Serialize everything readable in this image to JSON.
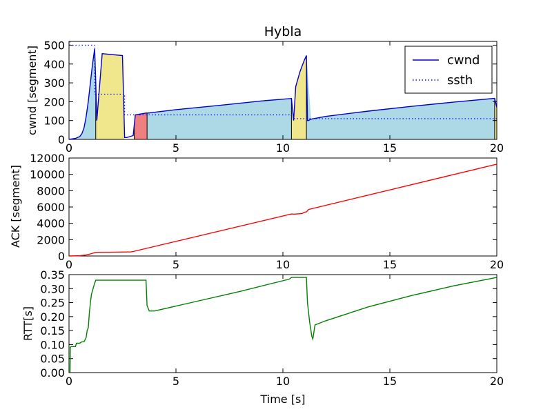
{
  "title": "Hybla",
  "colors": {
    "cwnd": "#0000cc",
    "ssth": "#0000ff",
    "ack": "#ff0000",
    "rtt": "#008000",
    "fill_congestion_avoidance": "#add8e6",
    "fill_slow_start": "#f0e68c",
    "fill_fast_recovery": "#f08080"
  },
  "chart_data": [
    {
      "type": "line",
      "ylabel": "cwnd [segment]",
      "xlim": [
        0,
        20
      ],
      "ylim": [
        0,
        520
      ],
      "xticks": [
        0,
        5,
        10,
        15,
        20
      ],
      "yticks": [
        0,
        100,
        200,
        300,
        400,
        500
      ],
      "legend": {
        "placement": "top-right",
        "entries": [
          "cwnd",
          "ssth"
        ]
      },
      "series": [
        {
          "name": "cwnd",
          "style": "solid",
          "x": [
            0,
            0.3,
            0.5,
            0.6,
            0.7,
            0.8,
            0.9,
            1.0,
            1.1,
            1.2,
            1.25,
            1.3,
            1.55,
            2.5,
            2.6,
            2.7,
            3.0,
            3.1,
            3.6,
            3.65,
            3.7,
            5,
            7,
            9,
            10.4,
            10.5,
            10.6,
            10.7,
            10.8,
            10.9,
            11.0,
            11.1,
            11.15,
            11.2,
            11.3,
            12,
            14,
            16,
            18,
            19.9,
            20
          ],
          "y": [
            0,
            5,
            15,
            30,
            60,
            120,
            200,
            300,
            400,
            480,
            300,
            100,
            455,
            445,
            10,
            10,
            20,
            130,
            140,
            140,
            140,
            158,
            180,
            204,
            217,
            100,
            280,
            320,
            360,
            390,
            420,
            445,
            100,
            100,
            107,
            122,
            150,
            175,
            198,
            218,
            170
          ]
        },
        {
          "name": "ssth",
          "style": "dotted",
          "x": [
            0.05,
            0.05,
            1.2,
            1.2,
            2.6,
            2.6,
            10.4,
            10.4,
            20
          ],
          "y": [
            520,
            500,
            500,
            240,
            240,
            130,
            130,
            110,
            110
          ]
        }
      ],
      "phases": [
        {
          "state": "congestion_avoidance",
          "x_from": 0,
          "x_to": 1.25
        },
        {
          "state": "slow_start",
          "x_from": 1.25,
          "x_to": 2.6
        },
        {
          "state": "fast_recovery",
          "x_from": 3.05,
          "x_to": 3.65
        },
        {
          "state": "congestion_avoidance",
          "x_from": 3.65,
          "x_to": 10.4
        },
        {
          "state": "slow_start",
          "x_from": 10.4,
          "x_to": 11.1
        },
        {
          "state": "congestion_avoidance",
          "x_from": 11.1,
          "x_to": 19.9
        },
        {
          "state": "slow_start",
          "x_from": 19.9,
          "x_to": 20
        }
      ]
    },
    {
      "type": "line",
      "ylabel": "ACK [segment]",
      "xlim": [
        0,
        20
      ],
      "ylim": [
        0,
        12000
      ],
      "xticks": [
        0,
        5,
        10,
        15,
        20
      ],
      "yticks": [
        0,
        2000,
        4000,
        6000,
        8000,
        10000,
        12000
      ],
      "series": [
        {
          "name": "ack",
          "x": [
            0,
            0.5,
            0.8,
            1.0,
            1.25,
            2.0,
            2.9,
            3.0,
            10.4,
            10.5,
            10.9,
            11.0,
            11.1,
            11.2,
            20
          ],
          "y": [
            0,
            30,
            120,
            250,
            450,
            460,
            500,
            550,
            5150,
            5120,
            5200,
            5350,
            5400,
            5700,
            11250
          ]
        }
      ]
    },
    {
      "type": "line",
      "ylabel": "RTT[s]",
      "xlabel": "Time [s]",
      "xlim": [
        0,
        20
      ],
      "ylim": [
        0,
        0.35
      ],
      "xticks": [
        0,
        5,
        10,
        15,
        20
      ],
      "yticks": [
        0.0,
        0.05,
        0.1,
        0.15,
        0.2,
        0.25,
        0.3,
        0.35
      ],
      "series": [
        {
          "name": "rtt",
          "x": [
            0.05,
            0.06,
            0.1,
            0.3,
            0.35,
            0.5,
            0.6,
            0.7,
            0.8,
            0.85,
            0.9,
            0.95,
            1.0,
            1.05,
            1.2,
            1.25,
            3.6,
            3.65,
            3.75,
            4,
            6,
            8,
            10.3,
            10.4,
            11.1,
            11.15,
            11.25,
            11.35,
            11.4,
            11.5,
            12,
            14,
            16,
            18,
            20
          ],
          "y": [
            0.0,
            0.09,
            0.093,
            0.093,
            0.105,
            0.105,
            0.11,
            0.11,
            0.125,
            0.15,
            0.16,
            0.21,
            0.25,
            0.28,
            0.32,
            0.33,
            0.33,
            0.24,
            0.22,
            0.22,
            0.255,
            0.29,
            0.334,
            0.34,
            0.34,
            0.25,
            0.18,
            0.13,
            0.12,
            0.17,
            0.185,
            0.235,
            0.275,
            0.31,
            0.34
          ]
        }
      ]
    }
  ]
}
